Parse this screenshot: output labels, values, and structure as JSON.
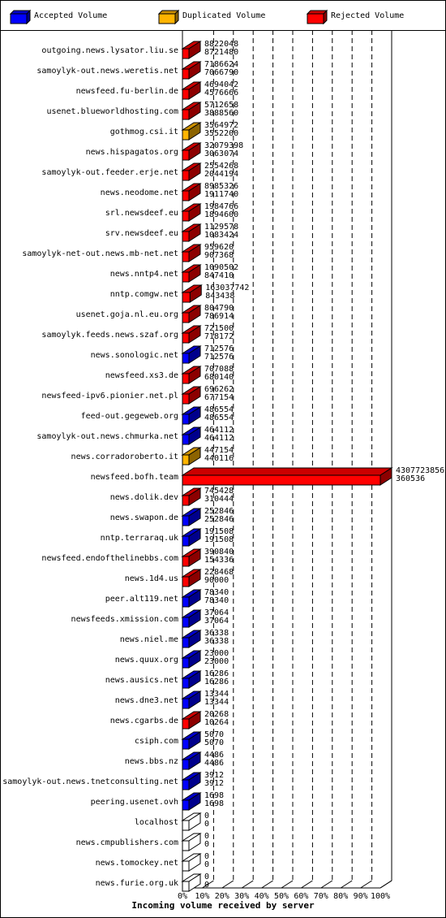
{
  "legend": [
    {
      "label": "Accepted Volume",
      "color": "#0000ff"
    },
    {
      "label": "Duplicated Volume",
      "color": "#ffb400"
    },
    {
      "label": "Rejected Volume",
      "color": "#ff0000"
    }
  ],
  "chart_data": {
    "type": "bar",
    "orientation": "horizontal",
    "xlabel": "Incoming volume received by server",
    "x_ticks": [
      "0%",
      "10%",
      "20%",
      "30%",
      "40%",
      "50%",
      "60%",
      "70%",
      "80%",
      "90%",
      "100%"
    ],
    "xlim": [
      0,
      100
    ],
    "grid": true,
    "legend_position": "top",
    "max_total": 4307723856,
    "categories": [
      "outgoing.news.lysator.liu.se",
      "samoylyk-out.news.weretis.net",
      "newsfeed.fu-berlin.de",
      "usenet.blueworldhosting.com",
      "gothmog.csi.it",
      "news.hispagatos.org",
      "samoylyk-out.feeder.erje.net",
      "news.neodome.net",
      "srl.newsdeef.eu",
      "srv.newsdeef.eu",
      "samoylyk-net-out.news.mb-net.net",
      "news.nntp4.net",
      "nntp.comgw.net",
      "usenet.goja.nl.eu.org",
      "samoylyk.feeds.news.szaf.org",
      "news.sonologic.net",
      "newsfeed.xs3.de",
      "newsfeed-ipv6.pionier.net.pl",
      "feed-out.gegeweb.org",
      "samoylyk-out.news.chmurka.net",
      "news.corradoroberto.it",
      "newsfeed.bofh.team",
      "news.dolik.dev",
      "news.swapon.de",
      "nntp.terraraq.uk",
      "newsfeed.endofthelinebbs.com",
      "news.1d4.us",
      "peer.alt119.net",
      "newsfeeds.xmission.com",
      "news.niel.me",
      "news.quux.org",
      "news.ausics.net",
      "news.dne3.net",
      "news.cgarbs.de",
      "csiph.com",
      "news.bbs.nz",
      "samoylyk-out.news.tnetconsulting.net",
      "peering.usenet.ovh",
      "localhost",
      "news.cmpublishers.com",
      "news.tomockey.net",
      "news.furie.org.uk"
    ],
    "series": [
      {
        "name": "Total",
        "values": [
          "8822048",
          "7186624",
          "4694042",
          "5712658",
          "3564972",
          "32079398",
          "2554268",
          "8985326",
          "1984766",
          "1129578",
          "959620",
          "1090502",
          "163037742",
          "804790",
          "721500",
          "712576",
          "707088",
          "696262",
          "486554",
          "464112",
          "447154",
          "4307723856",
          "745428",
          "252846",
          "191508",
          "390840",
          "228468",
          "78340",
          "37064",
          "36338",
          "23000",
          "16286",
          "13344",
          "20268",
          "5070",
          "4486",
          "3912",
          "1698",
          "0",
          "0",
          "0",
          "0"
        ]
      },
      {
        "name": "Accepted",
        "values": [
          "8721480",
          "7066790",
          "4576666",
          "3888560",
          "3552200",
          "3063074",
          "2044194",
          "1911740",
          "1894600",
          "1083424",
          "907368",
          "847410",
          "843438",
          "786914",
          "718172",
          "712576",
          "680140",
          "677154",
          "486554",
          "464112",
          "440116",
          "360536",
          "310444",
          "252846",
          "191508",
          "154336",
          "90000",
          "78340",
          "37064",
          "36338",
          "23000",
          "16286",
          "13344",
          "10264",
          "5070",
          "4486",
          "3912",
          "1698",
          "0",
          "0",
          "0",
          "0"
        ]
      }
    ],
    "bar_colors": [
      "#ff0000",
      "#ff0000",
      "#ff0000",
      "#ff0000",
      "#ffb400",
      "#ff0000",
      "#ff0000",
      "#ff0000",
      "#ff0000",
      "#ff0000",
      "#ff0000",
      "#ff0000",
      "#ff0000",
      "#ff0000",
      "#ff0000",
      "#0000ff",
      "#ff0000",
      "#ff0000",
      "#0000ff",
      "#0000ff",
      "#ffb400",
      "#ff0000",
      "#ff0000",
      "#0000ff",
      "#0000ff",
      "#ff0000",
      "#ff0000",
      "#0000ff",
      "#0000ff",
      "#0000ff",
      "#0000ff",
      "#0000ff",
      "#0000ff",
      "#ff0000",
      "#0000ff",
      "#0000ff",
      "#0000ff",
      "#0000ff",
      "#ffffff",
      "#ffffff",
      "#ffffff",
      "#ffffff"
    ]
  }
}
